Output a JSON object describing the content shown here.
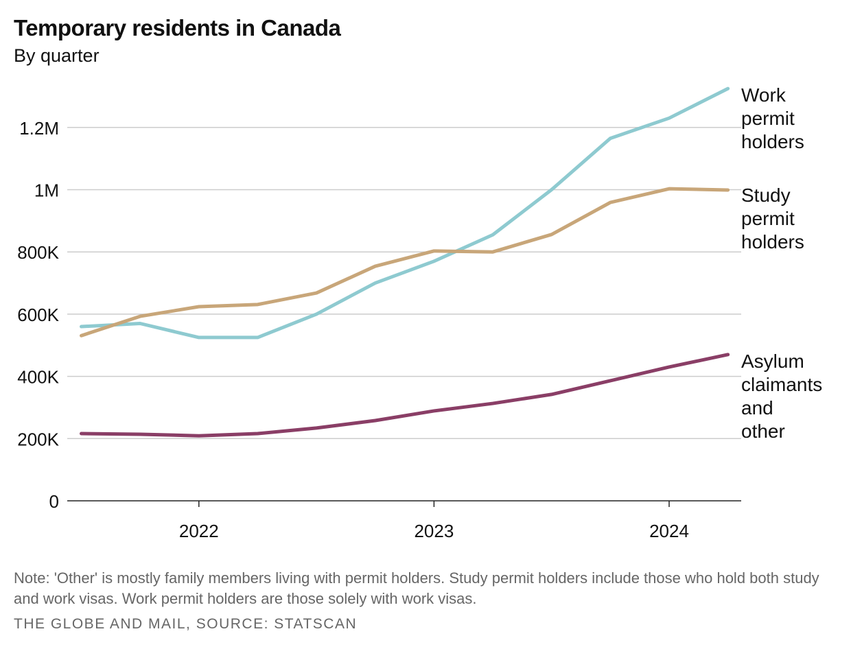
{
  "chart_data": {
    "type": "line",
    "title": "Temporary residents in Canada",
    "subtitle": "By quarter",
    "xlabel": "",
    "ylabel": "",
    "x": [
      "2021 Q3",
      "2021 Q4",
      "2022 Q1",
      "2022 Q2",
      "2022 Q3",
      "2022 Q4",
      "2023 Q1",
      "2023 Q2",
      "2023 Q3",
      "2023 Q4",
      "2024 Q1",
      "2024 Q2"
    ],
    "x_ticks": [
      {
        "label": "2022",
        "index": 2
      },
      {
        "label": "2023",
        "index": 6
      },
      {
        "label": "2024",
        "index": 10
      }
    ],
    "y_ticks": [
      {
        "label": "0",
        "value": 0
      },
      {
        "label": "200K",
        "value": 200000
      },
      {
        "label": "400K",
        "value": 400000
      },
      {
        "label": "600K",
        "value": 600000
      },
      {
        "label": "800K",
        "value": 800000
      },
      {
        "label": "1M",
        "value": 1000000
      },
      {
        "label": "1.2M",
        "value": 1200000
      }
    ],
    "ylim": [
      0,
      1200000
    ],
    "grid": true,
    "legend": "direct labels at right end of lines",
    "series": [
      {
        "name": "Work permit holders",
        "label_lines": [
          "Work",
          "permit",
          "holders"
        ],
        "color": "#8ecad0",
        "values": [
          560000,
          570000,
          525000,
          525000,
          600000,
          700000,
          770000,
          855000,
          1000000,
          1165000,
          1230000,
          1325000
        ]
      },
      {
        "name": "Study permit holders",
        "label_lines": [
          "Study",
          "permit",
          "holders"
        ],
        "color": "#c8a679",
        "values": [
          531000,
          593000,
          624000,
          631000,
          668000,
          754000,
          803000,
          800000,
          856000,
          959000,
          1003000,
          999000
        ]
      },
      {
        "name": "Asylum claimants and other",
        "label_lines": [
          "Asylum",
          "claimants",
          "and",
          "other"
        ],
        "color": "#8a3e66",
        "values": [
          216000,
          214000,
          209000,
          216000,
          234000,
          258000,
          289000,
          313000,
          342000,
          386000,
          430000,
          470000
        ]
      }
    ]
  },
  "note": "Note: 'Other' is mostly family members living with permit holders. Study permit holders include those who hold both study and work visas. Work permit holders are those solely with work visas.",
  "source": "THE GLOBE AND MAIL, SOURCE: STATSCAN"
}
